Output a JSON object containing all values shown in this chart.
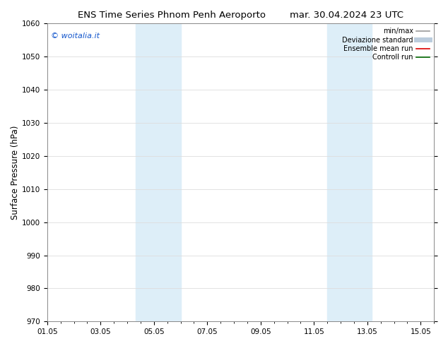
{
  "title_left": "ENS Time Series Phnom Penh Aeroporto",
  "title_right": "mar. 30.04.2024 23 UTC",
  "ylabel": "Surface Pressure (hPa)",
  "ylim": [
    970,
    1060
  ],
  "yticks": [
    970,
    980,
    990,
    1000,
    1010,
    1020,
    1030,
    1040,
    1050,
    1060
  ],
  "xlim": [
    0.0,
    14.5
  ],
  "xtick_labels": [
    "01.05",
    "03.05",
    "05.05",
    "07.05",
    "09.05",
    "11.05",
    "13.05",
    "15.05"
  ],
  "xtick_positions": [
    0,
    2,
    4,
    6,
    8,
    10,
    12,
    14
  ],
  "shaded_bands": [
    {
      "xmin": 3.33,
      "xmax": 5.0,
      "color": "#ddeef8"
    },
    {
      "xmin": 10.5,
      "xmax": 12.17,
      "color": "#ddeef8"
    }
  ],
  "watermark_text": "© woitalia.it",
  "watermark_color": "#1155cc",
  "legend_entries": [
    {
      "label": "min/max",
      "color": "#999999",
      "lw": 1.2,
      "ls": "-"
    },
    {
      "label": "Deviazione standard",
      "color": "#bbccdd",
      "lw": 5,
      "ls": "-"
    },
    {
      "label": "Ensemble mean run",
      "color": "#dd0000",
      "lw": 1.2,
      "ls": "-"
    },
    {
      "label": "Controll run",
      "color": "#006600",
      "lw": 1.2,
      "ls": "-"
    }
  ],
  "bg_color": "#ffffff",
  "spine_color": "#888888",
  "grid_color": "#dddddd",
  "title_fontsize": 9.5,
  "tick_fontsize": 7.5,
  "ylabel_fontsize": 8.5,
  "legend_fontsize": 7.0,
  "watermark_fontsize": 8.0
}
